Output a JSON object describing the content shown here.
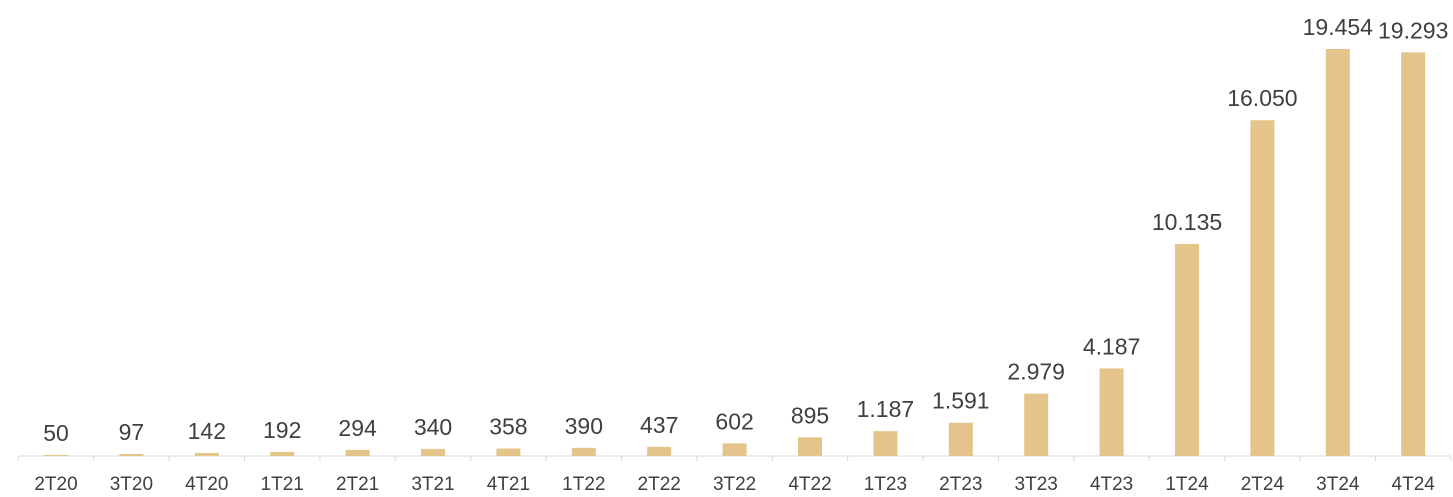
{
  "chart_data": {
    "type": "bar",
    "categories": [
      "2T20",
      "3T20",
      "4T20",
      "1T21",
      "2T21",
      "3T21",
      "4T21",
      "1T22",
      "2T22",
      "3T22",
      "4T22",
      "1T23",
      "2T23",
      "3T23",
      "4T23",
      "1T24",
      "2T24",
      "3T24",
      "4T24"
    ],
    "values": [
      50,
      97,
      142,
      192,
      294,
      340,
      358,
      390,
      437,
      602,
      895,
      1187,
      1591,
      2979,
      4187,
      10135,
      16050,
      19454,
      19293
    ],
    "data_labels": [
      "50",
      "97",
      "142",
      "192",
      "294",
      "340",
      "358",
      "390",
      "437",
      "602",
      "895",
      "1.187",
      "1.591",
      "2.979",
      "4.187",
      "10.135",
      "16.050",
      "19.454",
      "19.293"
    ],
    "ylim": [
      0,
      19454
    ],
    "grid": false,
    "legend": "none",
    "bar_color": "#E4C48A",
    "axis_color": "#D9D9D9",
    "text_color": "#404040"
  }
}
